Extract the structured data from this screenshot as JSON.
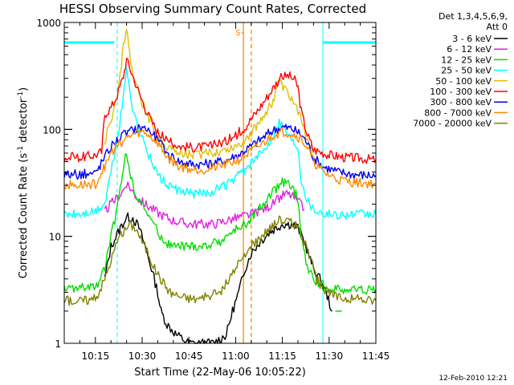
{
  "chart_data": {
    "type": "line",
    "title": "HESSI Observing Summary Count Rates, Corrected",
    "xlabel": "Start Time (22-May-06 10:05:22)",
    "ylabel_main": "Corrected Count Rate (s",
    "ylabel_sup1": "-1",
    "ylabel_mid": " detector",
    "ylabel_sup2": "-1",
    "ylabel_end": ")",
    "yscale": "log",
    "ylim": [
      1,
      1000
    ],
    "xlim_minutes": [
      0,
      100
    ],
    "x_ticks": [
      {
        "m": 10,
        "label": "10:15"
      },
      {
        "m": 25,
        "label": "10:30"
      },
      {
        "m": 40,
        "label": "10:45"
      },
      {
        "m": 55,
        "label": "11:00"
      },
      {
        "m": 70,
        "label": "11:15"
      },
      {
        "m": 85,
        "label": "11:30"
      },
      {
        "m": 100,
        "label": "11:45"
      }
    ],
    "y_ticks": [
      {
        "v": 1,
        "label": "1"
      },
      {
        "v": 10,
        "label": "10"
      },
      {
        "v": 100,
        "label": "100"
      },
      {
        "v": 1000,
        "label": "1000"
      }
    ],
    "legend_header": [
      "Det 1,3,4,5,6,9,",
      "Att 0"
    ],
    "series": [
      {
        "name": "3 - 6 keV",
        "color": "#000000",
        "points": [
          [
            13,
            4
          ],
          [
            15,
            8
          ],
          [
            18,
            12
          ],
          [
            20,
            15
          ],
          [
            22,
            15
          ],
          [
            24,
            12
          ],
          [
            26,
            8
          ],
          [
            28,
            5
          ],
          [
            30,
            3
          ],
          [
            31,
            2
          ],
          [
            33,
            1.5
          ],
          [
            36,
            1.2
          ],
          [
            40,
            1
          ],
          [
            44,
            1
          ],
          [
            48,
            1
          ],
          [
            52,
            1.2
          ],
          [
            54,
            2
          ],
          [
            56,
            3
          ],
          [
            58,
            5
          ],
          [
            60,
            7
          ],
          [
            63,
            9
          ],
          [
            66,
            11
          ],
          [
            70,
            13
          ],
          [
            73,
            13
          ],
          [
            75,
            12
          ],
          [
            77,
            9
          ],
          [
            79,
            6
          ],
          [
            80,
            5
          ],
          [
            82,
            4
          ],
          [
            84,
            3
          ],
          [
            86,
            2
          ]
        ]
      },
      {
        "name": "6 - 12 keV",
        "color": "#e020e0",
        "points": [
          [
            13,
            17
          ],
          [
            15,
            20
          ],
          [
            17,
            23
          ],
          [
            19,
            27
          ],
          [
            20,
            32
          ],
          [
            22,
            26
          ],
          [
            24,
            22
          ],
          [
            27,
            19
          ],
          [
            31,
            16
          ],
          [
            35,
            14
          ],
          [
            40,
            13
          ],
          [
            44,
            13
          ],
          [
            48,
            13
          ],
          [
            52,
            14
          ],
          [
            56,
            15
          ],
          [
            60,
            16
          ],
          [
            64,
            18
          ],
          [
            67,
            20
          ],
          [
            69,
            23
          ],
          [
            71,
            25
          ],
          [
            73,
            24
          ],
          [
            75,
            21
          ],
          [
            77,
            18
          ]
        ]
      },
      {
        "name": "12 - 25 keV",
        "color": "#00dd00",
        "points": [
          [
            0,
            3.2
          ],
          [
            5,
            3.3
          ],
          [
            10,
            3.3
          ],
          [
            13,
            5
          ],
          [
            15,
            10
          ],
          [
            17,
            18
          ],
          [
            18,
            30
          ],
          [
            19,
            45
          ],
          [
            20,
            60
          ],
          [
            21,
            40
          ],
          [
            22,
            30
          ],
          [
            24,
            22
          ],
          [
            26,
            18
          ],
          [
            28,
            14
          ],
          [
            30,
            11
          ],
          [
            32,
            9
          ],
          [
            35,
            8
          ],
          [
            40,
            8
          ],
          [
            45,
            8
          ],
          [
            50,
            9
          ],
          [
            54,
            11
          ],
          [
            58,
            13
          ],
          [
            62,
            17
          ],
          [
            65,
            22
          ],
          [
            68,
            28
          ],
          [
            70,
            32
          ],
          [
            72,
            30
          ],
          [
            74,
            26
          ],
          [
            75,
            22
          ],
          [
            76,
            10
          ],
          [
            78,
            5
          ],
          [
            80,
            4
          ],
          [
            85,
            3.2
          ],
          [
            90,
            3.2
          ],
          [
            95,
            3.2
          ],
          [
            100,
            3.2
          ]
        ]
      },
      {
        "name": "25 - 50 keV",
        "color": "#00ffff",
        "points": [
          [
            0,
            16
          ],
          [
            5,
            16
          ],
          [
            10,
            17
          ],
          [
            13,
            20
          ],
          [
            15,
            40
          ],
          [
            17,
            80
          ],
          [
            19,
            200
          ],
          [
            20,
            380
          ],
          [
            21,
            250
          ],
          [
            22,
            150
          ],
          [
            24,
            100
          ],
          [
            26,
            70
          ],
          [
            28,
            50
          ],
          [
            30,
            38
          ],
          [
            33,
            30
          ],
          [
            37,
            26
          ],
          [
            42,
            25
          ],
          [
            47,
            26
          ],
          [
            52,
            30
          ],
          [
            55,
            35
          ],
          [
            58,
            42
          ],
          [
            62,
            55
          ],
          [
            65,
            70
          ],
          [
            67,
            90
          ],
          [
            69,
            120
          ],
          [
            71,
            100
          ],
          [
            73,
            80
          ],
          [
            75,
            70
          ],
          [
            76,
            35
          ],
          [
            78,
            22
          ],
          [
            80,
            18
          ],
          [
            85,
            16
          ],
          [
            90,
            16
          ],
          [
            95,
            16
          ],
          [
            100,
            16
          ]
        ]
      },
      {
        "name": "50 - 100 keV",
        "color": "#e0c000",
        "points": [
          [
            13,
            80
          ],
          [
            15,
            120
          ],
          [
            17,
            200
          ],
          [
            18,
            320
          ],
          [
            19,
            600
          ],
          [
            20,
            950
          ],
          [
            21,
            500
          ],
          [
            22,
            320
          ],
          [
            24,
            210
          ],
          [
            26,
            150
          ],
          [
            28,
            110
          ],
          [
            30,
            85
          ],
          [
            33,
            70
          ],
          [
            37,
            60
          ],
          [
            42,
            58
          ],
          [
            47,
            60
          ],
          [
            52,
            65
          ],
          [
            55,
            70
          ],
          [
            58,
            80
          ],
          [
            62,
            110
          ],
          [
            65,
            150
          ],
          [
            67,
            180
          ],
          [
            68,
            240
          ],
          [
            69,
            280
          ],
          [
            71,
            230
          ],
          [
            73,
            190
          ],
          [
            75,
            150
          ],
          [
            77,
            100
          ],
          [
            79,
            70
          ],
          [
            80,
            60
          ]
        ]
      },
      {
        "name": "100 - 300 keV",
        "color": "#ff0000",
        "points": [
          [
            0,
            55
          ],
          [
            5,
            55
          ],
          [
            10,
            58
          ],
          [
            12,
            62
          ],
          [
            13,
            140
          ],
          [
            15,
            160
          ],
          [
            17,
            210
          ],
          [
            19,
            320
          ],
          [
            20,
            450
          ],
          [
            22,
            320
          ],
          [
            24,
            220
          ],
          [
            26,
            160
          ],
          [
            28,
            120
          ],
          [
            30,
            95
          ],
          [
            33,
            78
          ],
          [
            37,
            70
          ],
          [
            42,
            68
          ],
          [
            47,
            70
          ],
          [
            52,
            78
          ],
          [
            55,
            88
          ],
          [
            58,
            105
          ],
          [
            62,
            150
          ],
          [
            65,
            200
          ],
          [
            68,
            270
          ],
          [
            70,
            310
          ],
          [
            72,
            320
          ],
          [
            74,
            290
          ],
          [
            75,
            250
          ],
          [
            76,
            150
          ],
          [
            78,
            90
          ],
          [
            80,
            65
          ],
          [
            85,
            58
          ],
          [
            90,
            55
          ],
          [
            95,
            54
          ],
          [
            100,
            52
          ]
        ]
      },
      {
        "name": "300 - 800 keV",
        "color": "#0000ee",
        "points": [
          [
            0,
            38
          ],
          [
            5,
            38
          ],
          [
            10,
            39
          ],
          [
            13,
            55
          ],
          [
            15,
            70
          ],
          [
            18,
            85
          ],
          [
            22,
            100
          ],
          [
            25,
            105
          ],
          [
            27,
            100
          ],
          [
            30,
            80
          ],
          [
            33,
            60
          ],
          [
            37,
            50
          ],
          [
            42,
            47
          ],
          [
            47,
            48
          ],
          [
            52,
            52
          ],
          [
            56,
            58
          ],
          [
            60,
            70
          ],
          [
            64,
            85
          ],
          [
            67,
            98
          ],
          [
            70,
            105
          ],
          [
            73,
            102
          ],
          [
            76,
            90
          ],
          [
            78,
            75
          ],
          [
            80,
            55
          ],
          [
            83,
            45
          ],
          [
            88,
            40
          ],
          [
            93,
            38
          ],
          [
            100,
            37
          ]
        ]
      },
      {
        "name": "800 - 7000 keV",
        "color": "#ff8800",
        "points": [
          [
            0,
            30
          ],
          [
            5,
            30
          ],
          [
            10,
            31
          ],
          [
            13,
            45
          ],
          [
            15,
            60
          ],
          [
            18,
            75
          ],
          [
            22,
            90
          ],
          [
            25,
            95
          ],
          [
            27,
            90
          ],
          [
            30,
            75
          ],
          [
            33,
            55
          ],
          [
            37,
            45
          ],
          [
            42,
            42
          ],
          [
            47,
            43
          ],
          [
            52,
            47
          ],
          [
            56,
            52
          ],
          [
            60,
            62
          ],
          [
            64,
            75
          ],
          [
            67,
            88
          ],
          [
            70,
            95
          ],
          [
            73,
            92
          ],
          [
            76,
            82
          ],
          [
            78,
            68
          ],
          [
            80,
            50
          ],
          [
            83,
            40
          ],
          [
            88,
            34
          ],
          [
            93,
            32
          ],
          [
            100,
            31
          ]
        ]
      },
      {
        "name": "7000 - 20000 keV",
        "color": "#808000",
        "points": [
          [
            0,
            2.5
          ],
          [
            5,
            2.5
          ],
          [
            10,
            2.6
          ],
          [
            13,
            4
          ],
          [
            15,
            6
          ],
          [
            17,
            9
          ],
          [
            19,
            11
          ],
          [
            21,
            13
          ],
          [
            23,
            12
          ],
          [
            25,
            9
          ],
          [
            27,
            7
          ],
          [
            29,
            5
          ],
          [
            31,
            4
          ],
          [
            34,
            3
          ],
          [
            38,
            2.7
          ],
          [
            42,
            2.6
          ],
          [
            46,
            2.7
          ],
          [
            50,
            3
          ],
          [
            53,
            4
          ],
          [
            55,
            5
          ],
          [
            57,
            6
          ],
          [
            60,
            8
          ],
          [
            63,
            10
          ],
          [
            66,
            12
          ],
          [
            69,
            14
          ],
          [
            72,
            14
          ],
          [
            75,
            12
          ],
          [
            77,
            9
          ],
          [
            79,
            6
          ],
          [
            81,
            4
          ],
          [
            84,
            3
          ],
          [
            88,
            2.7
          ],
          [
            93,
            2.6
          ],
          [
            100,
            2.5
          ]
        ]
      }
    ],
    "attenuator_level": 650,
    "attenuator_segments": [
      [
        0,
        16
      ],
      [
        83,
        100
      ]
    ],
    "cyan_solid_lines_minutes": [
      0,
      83
    ],
    "cyan_dashed_lines_minutes": [
      17,
      100
    ],
    "orange_solid_line_minutes": 57.5,
    "orange_dashed_line_minutes": 60,
    "orange_annotation": "S",
    "green_tick_annotation": {
      "m": 88,
      "v": 2
    }
  },
  "footer_date": "12-Feb-2010 12:21"
}
